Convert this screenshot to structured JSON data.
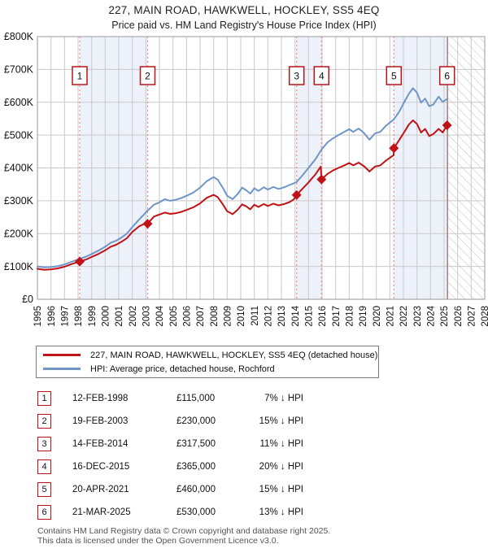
{
  "chart_data": {
    "type": "line",
    "title": "227, MAIN ROAD, HAWKWELL, HOCKLEY, SS5 4EQ",
    "subtitle": "Price paid vs. HM Land Registry's House Price Index (HPI)",
    "x_range": [
      1995,
      2028
    ],
    "ylim": [
      0,
      800000
    ],
    "grid": true,
    "legend_position": "below",
    "x_ticks": [
      1995,
      1996,
      1997,
      1998,
      1999,
      2000,
      2001,
      2002,
      2003,
      2004,
      2005,
      2006,
      2007,
      2008,
      2009,
      2010,
      2011,
      2012,
      2013,
      2014,
      2015,
      2016,
      2017,
      2018,
      2019,
      2020,
      2021,
      2022,
      2023,
      2024,
      2025,
      2026,
      2027,
      2028
    ],
    "y_ticks": [
      {
        "value": 0,
        "label": "£0"
      },
      {
        "value": 100000,
        "label": "£100K"
      },
      {
        "value": 200000,
        "label": "£200K"
      },
      {
        "value": 300000,
        "label": "£300K"
      },
      {
        "value": 400000,
        "label": "£400K"
      },
      {
        "value": 500000,
        "label": "£500K"
      },
      {
        "value": 600000,
        "label": "£600K"
      },
      {
        "value": 700000,
        "label": "£700K"
      },
      {
        "value": 800000,
        "label": "£800K"
      }
    ],
    "colors": {
      "price_line": "#c01318",
      "hpi_line": "#6e96c8",
      "sale_dash": "#f0888a",
      "band_fill": "#edf2fa",
      "grid_line": "#c9c9c9",
      "plot_border": "#9a9a9a",
      "hatch_line": "#bfbfc6",
      "marker_box_border": "#b91419"
    },
    "ownership_bands": [
      [
        1998.12,
        2003.13
      ],
      [
        2014.12,
        2015.96
      ],
      [
        2021.3,
        2025.22
      ]
    ],
    "future_hatch_from": 2025.25,
    "sales": [
      {
        "num": "1",
        "date": "12-FEB-1998",
        "price": 115000,
        "price_label": "£115,000",
        "pct": "7% ↓ HPI",
        "year": 1998.12
      },
      {
        "num": "2",
        "date": "19-FEB-2003",
        "price": 230000,
        "price_label": "£230,000",
        "pct": "15% ↓ HPI",
        "year": 2003.13
      },
      {
        "num": "3",
        "date": "14-FEB-2014",
        "price": 317500,
        "price_label": "£317,500",
        "pct": "11% ↓ HPI",
        "year": 2014.12
      },
      {
        "num": "4",
        "date": "16-DEC-2015",
        "price": 365000,
        "price_label": "£365,000",
        "pct": "20% ↓ HPI",
        "year": 2015.96
      },
      {
        "num": "5",
        "date": "20-APR-2021",
        "price": 460000,
        "price_label": "£460,000",
        "pct": "15% ↓ HPI",
        "year": 2021.3
      },
      {
        "num": "6",
        "date": "21-MAR-2025",
        "price": 530000,
        "price_label": "£530,000",
        "pct": "13% ↓ HPI",
        "year": 2025.22
      }
    ],
    "series": [
      {
        "name": "227, MAIN ROAD, HAWKWELL, HOCKLEY, SS5 4EQ (detached house)",
        "key": "price_line",
        "points": [
          [
            1995,
            93000
          ],
          [
            1995.5,
            90000
          ],
          [
            1996,
            91000
          ],
          [
            1996.5,
            94000
          ],
          [
            1997,
            99000
          ],
          [
            1997.5,
            107000
          ],
          [
            1998.12,
            115000
          ],
          [
            1998.6,
            121000
          ],
          [
            1999,
            129000
          ],
          [
            1999.5,
            138000
          ],
          [
            2000,
            149000
          ],
          [
            2000.4,
            160000
          ],
          [
            2000.8,
            166000
          ],
          [
            2001.2,
            175000
          ],
          [
            2001.6,
            186000
          ],
          [
            2002,
            205000
          ],
          [
            2002.5,
            222000
          ],
          [
            2003.0,
            232000
          ],
          [
            2003.13,
            230000
          ],
          [
            2003.6,
            252000
          ],
          [
            2004,
            258000
          ],
          [
            2004.4,
            264000
          ],
          [
            2004.8,
            260000
          ],
          [
            2005.2,
            262000
          ],
          [
            2005.6,
            266000
          ],
          [
            2006,
            272000
          ],
          [
            2006.5,
            280000
          ],
          [
            2007,
            292000
          ],
          [
            2007.5,
            309000
          ],
          [
            2008,
            318000
          ],
          [
            2008.3,
            311000
          ],
          [
            2008.7,
            288000
          ],
          [
            2009,
            268000
          ],
          [
            2009.4,
            259000
          ],
          [
            2009.8,
            274000
          ],
          [
            2010.1,
            289000
          ],
          [
            2010.4,
            283000
          ],
          [
            2010.7,
            274000
          ],
          [
            2011,
            288000
          ],
          [
            2011.3,
            281000
          ],
          [
            2011.7,
            290000
          ],
          [
            2012,
            284000
          ],
          [
            2012.4,
            291000
          ],
          [
            2012.8,
            286000
          ],
          [
            2013.2,
            290000
          ],
          [
            2013.6,
            296000
          ],
          [
            2013.9,
            304000
          ],
          [
            2014.12,
            317500
          ],
          [
            2014.5,
            334000
          ],
          [
            2015,
            356000
          ],
          [
            2015.5,
            380000
          ],
          [
            2015.9,
            404000
          ],
          [
            2015.96,
            365000
          ],
          [
            2016.4,
            382000
          ],
          [
            2016.8,
            392000
          ],
          [
            2017.2,
            400000
          ],
          [
            2017.6,
            407000
          ],
          [
            2018,
            415000
          ],
          [
            2018.3,
            408000
          ],
          [
            2018.7,
            416000
          ],
          [
            2019.1,
            405000
          ],
          [
            2019.5,
            389000
          ],
          [
            2019.9,
            404000
          ],
          [
            2020.3,
            408000
          ],
          [
            2020.7,
            422000
          ],
          [
            2021,
            431000
          ],
          [
            2021.28,
            439000
          ],
          [
            2021.3,
            460000
          ],
          [
            2021.7,
            486000
          ],
          [
            2022,
            505000
          ],
          [
            2022.4,
            532000
          ],
          [
            2022.7,
            545000
          ],
          [
            2023,
            534000
          ],
          [
            2023.3,
            508000
          ],
          [
            2023.6,
            519000
          ],
          [
            2023.9,
            497000
          ],
          [
            2024.2,
            503000
          ],
          [
            2024.6,
            519000
          ],
          [
            2024.9,
            508000
          ],
          [
            2025.22,
            530000
          ]
        ]
      },
      {
        "name": "HPI: Average price, detached house, Rochford",
        "key": "hpi_line",
        "points": [
          [
            1995,
            100000
          ],
          [
            1995.5,
            97000
          ],
          [
            1996,
            98000
          ],
          [
            1996.5,
            101000
          ],
          [
            1997,
            106000
          ],
          [
            1997.5,
            114000
          ],
          [
            1998.12,
            123000
          ],
          [
            1998.6,
            130000
          ],
          [
            1999,
            138000
          ],
          [
            1999.5,
            148000
          ],
          [
            2000,
            160000
          ],
          [
            2000.4,
            172000
          ],
          [
            2000.8,
            178000
          ],
          [
            2001.2,
            188000
          ],
          [
            2001.6,
            200000
          ],
          [
            2002,
            220000
          ],
          [
            2002.5,
            243000
          ],
          [
            2003.13,
            270000
          ],
          [
            2003.6,
            288000
          ],
          [
            2004,
            295000
          ],
          [
            2004.4,
            305000
          ],
          [
            2004.8,
            300000
          ],
          [
            2005.2,
            303000
          ],
          [
            2005.6,
            308000
          ],
          [
            2006,
            315000
          ],
          [
            2006.5,
            325000
          ],
          [
            2007,
            340000
          ],
          [
            2007.5,
            360000
          ],
          [
            2008,
            372000
          ],
          [
            2008.3,
            364000
          ],
          [
            2008.7,
            338000
          ],
          [
            2009,
            315000
          ],
          [
            2009.4,
            305000
          ],
          [
            2009.8,
            322000
          ],
          [
            2010.1,
            340000
          ],
          [
            2010.4,
            332000
          ],
          [
            2010.7,
            322000
          ],
          [
            2011,
            338000
          ],
          [
            2011.3,
            330000
          ],
          [
            2011.7,
            341000
          ],
          [
            2012,
            334000
          ],
          [
            2012.4,
            342000
          ],
          [
            2012.8,
            336000
          ],
          [
            2013.2,
            341000
          ],
          [
            2013.6,
            348000
          ],
          [
            2014.12,
            357000
          ],
          [
            2014.5,
            375000
          ],
          [
            2015,
            400000
          ],
          [
            2015.5,
            426000
          ],
          [
            2015.96,
            456000
          ],
          [
            2016.4,
            478000
          ],
          [
            2016.8,
            490000
          ],
          [
            2017.2,
            500000
          ],
          [
            2017.6,
            509000
          ],
          [
            2018,
            518000
          ],
          [
            2018.3,
            510000
          ],
          [
            2018.7,
            520000
          ],
          [
            2019.1,
            506000
          ],
          [
            2019.5,
            486000
          ],
          [
            2019.9,
            505000
          ],
          [
            2020.3,
            510000
          ],
          [
            2020.7,
            528000
          ],
          [
            2021,
            538000
          ],
          [
            2021.3,
            548000
          ],
          [
            2021.7,
            572000
          ],
          [
            2022,
            596000
          ],
          [
            2022.4,
            626000
          ],
          [
            2022.7,
            643000
          ],
          [
            2023,
            629000
          ],
          [
            2023.3,
            599000
          ],
          [
            2023.6,
            611000
          ],
          [
            2023.9,
            588000
          ],
          [
            2024.2,
            593000
          ],
          [
            2024.6,
            617000
          ],
          [
            2024.9,
            601000
          ],
          [
            2025.22,
            610000
          ]
        ]
      }
    ]
  },
  "legend": {
    "price_label": "227, MAIN ROAD, HAWKWELL, HOCKLEY, SS5 4EQ (detached house)",
    "hpi_label": "HPI: Average price, detached house, Rochford"
  },
  "footer": {
    "line1": "Contains HM Land Registry data © Crown copyright and database right 2025.",
    "line2": "This data is licensed under the Open Government Licence v3.0."
  }
}
